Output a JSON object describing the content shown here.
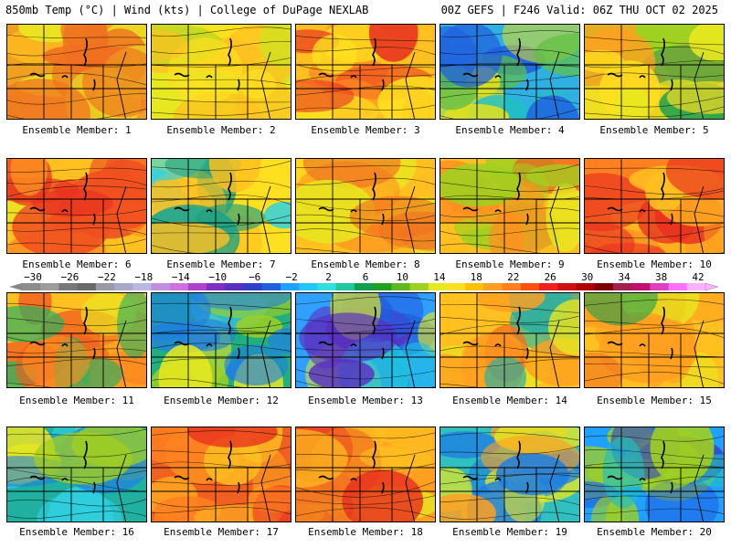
{
  "header": {
    "left_title": "850mb Temp (°C) | Wind (kts) | College of DuPage NEXLAB",
    "right_title": "00Z GEFS | F246 Valid: 06Z THU OCT 02 2025"
  },
  "colorbar": {
    "tick_labels": [
      "−30",
      "−26",
      "−22",
      "−18",
      "−14",
      "−10",
      "−6",
      "−2",
      "2",
      "6",
      "10",
      "14",
      "18",
      "22",
      "26",
      "30",
      "34",
      "38",
      "42"
    ],
    "colors": [
      "#8c8c8c",
      "#9c9c9c",
      "#787878",
      "#6a6a6a",
      "#9a9aa6",
      "#a8a8c8",
      "#b8b8e0",
      "#c090e0",
      "#d070e0",
      "#b040d0",
      "#8030c0",
      "#5a30c0",
      "#3040c8",
      "#2060e0",
      "#20a0ff",
      "#20c8ff",
      "#30e0e0",
      "#20c8a0",
      "#10a050",
      "#20a020",
      "#60b820",
      "#a0d020",
      "#e8e820",
      "#ffe020",
      "#ffc000",
      "#ffa020",
      "#ff8020",
      "#ff5010",
      "#f02020",
      "#d01010",
      "#b00000",
      "#800000",
      "#a02050",
      "#c01070",
      "#e040c0",
      "#ff70ff",
      "#ffb0ff"
    ],
    "icons": [
      "arrow-left-icon",
      "arrow-right-icon"
    ]
  },
  "members": [
    {
      "label": "Ensemble Member: 1"
    },
    {
      "label": "Ensemble Member: 2"
    },
    {
      "label": "Ensemble Member: 3"
    },
    {
      "label": "Ensemble Member: 4"
    },
    {
      "label": "Ensemble Member: 5"
    },
    {
      "label": "Ensemble Member: 6"
    },
    {
      "label": "Ensemble Member: 7"
    },
    {
      "label": "Ensemble Member: 8"
    },
    {
      "label": "Ensemble Member: 9"
    },
    {
      "label": "Ensemble Member: 10"
    },
    {
      "label": "Ensemble Member: 11"
    },
    {
      "label": "Ensemble Member: 12"
    },
    {
      "label": "Ensemble Member: 13"
    },
    {
      "label": "Ensemble Member: 14"
    },
    {
      "label": "Ensemble Member: 15"
    },
    {
      "label": "Ensemble Member: 16"
    },
    {
      "label": "Ensemble Member: 17"
    },
    {
      "label": "Ensemble Member: 18"
    },
    {
      "label": "Ensemble Member: 19"
    },
    {
      "label": "Ensemble Member: 20"
    }
  ]
}
